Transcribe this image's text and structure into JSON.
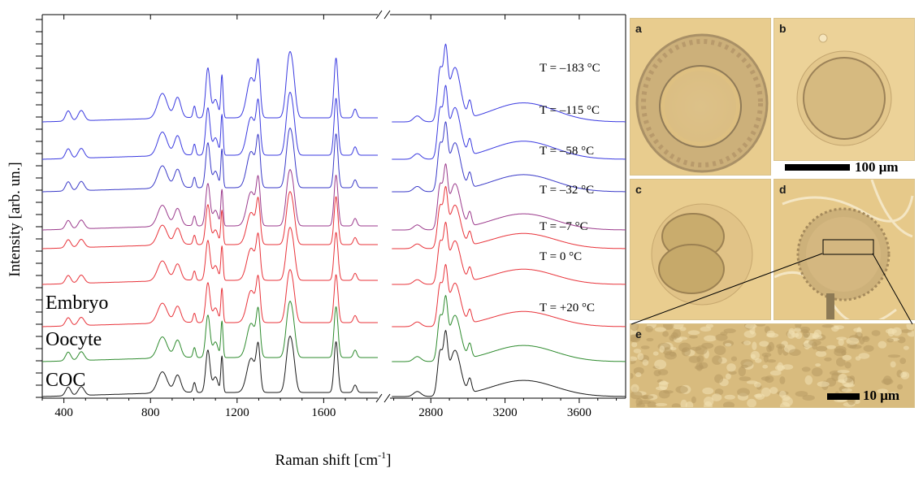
{
  "chart_data": {
    "type": "line",
    "xlabel": "Raman shift [cm",
    "xlabel_sup": "-1",
    "xlabel_close": "]",
    "ylabel": "Intensity [arb. un.]",
    "x_ticks_left": [
      400,
      800,
      1200,
      1600
    ],
    "x_ticks_right": [
      2800,
      3200,
      3600
    ],
    "xlim_left": [
      300,
      1850
    ],
    "xlim_right": [
      2580,
      3850
    ],
    "axis_break": true,
    "y_ticks_shown": false,
    "peaks": [
      {
        "x": 420,
        "h": 0.14,
        "w": 12
      },
      {
        "x": 480,
        "h": 0.14,
        "w": 14
      },
      {
        "x": 855,
        "h": 0.34,
        "w": 22
      },
      {
        "x": 925,
        "h": 0.28,
        "w": 15
      },
      {
        "x": 1003,
        "h": 0.16,
        "w": 6
      },
      {
        "x": 1065,
        "h": 0.68,
        "w": 10
      },
      {
        "x": 1100,
        "h": 0.25,
        "w": 12
      },
      {
        "x": 1130,
        "h": 0.58,
        "w": 5
      },
      {
        "x": 1265,
        "h": 0.55,
        "w": 20
      },
      {
        "x": 1298,
        "h": 0.66,
        "w": 9
      },
      {
        "x": 1440,
        "h": 0.78,
        "w": 14
      },
      {
        "x": 1460,
        "h": 0.38,
        "w": 12
      },
      {
        "x": 1657,
        "h": 0.82,
        "w": 9
      },
      {
        "x": 1745,
        "h": 0.12,
        "w": 8
      },
      {
        "x": 2727,
        "h": 0.08,
        "w": 20
      },
      {
        "x": 2850,
        "h": 0.7,
        "w": 14
      },
      {
        "x": 2880,
        "h": 0.8,
        "w": 11
      },
      {
        "x": 2930,
        "h": 0.72,
        "w": 30
      },
      {
        "x": 3010,
        "h": 0.22,
        "w": 10
      },
      {
        "x": 3300,
        "h": 0.26,
        "w": 170
      }
    ],
    "series": [
      {
        "name": "COC",
        "label_text": "COC",
        "color": "#1a1a1a",
        "scale": 0.85,
        "label_side": "left"
      },
      {
        "name": "Oocyte",
        "label_text": "Oocyte",
        "color": "#2e8b2e",
        "scale": 0.85,
        "label_side": "left"
      },
      {
        "name": "Embryo",
        "label_text": "Embryo",
        "color": "#e8333a",
        "scale": 0.8,
        "label_side": "left"
      },
      {
        "name": "T = 0 °C",
        "label_text": "T = 0 °C",
        "color": "#e8333a",
        "scale": 0.8,
        "label_side": "right"
      },
      {
        "name": "T = –7 °C",
        "label_text": "T = –7 °C",
        "color": "#e8333a",
        "scale": 0.8,
        "label_side": "right"
      },
      {
        "name": "T = –32 °C",
        "label_text": "T = –32 °C",
        "color": "#9b3a8c",
        "scale": 0.85,
        "label_side": "right"
      },
      {
        "name": "T = –58 °C",
        "label_text": "T = –58 °C",
        "color": "#3a3ac8",
        "scale": 0.9,
        "label_side": "right"
      },
      {
        "name": "T = –115 °C",
        "label_text": "T = –115 °C",
        "color": "#3a3ae0",
        "scale": 0.95,
        "label_side": "right"
      },
      {
        "name": "T = –183 °C",
        "label_text": "T = –183 °C",
        "color": "#3a3ae0",
        "scale": 1.0,
        "label_side": "right"
      }
    ],
    "embryo_temp_label": "T = +20 °C"
  },
  "micrographs": {
    "panel_labels": [
      "a",
      "b",
      "c",
      "d",
      "e"
    ],
    "scale_bar_1": "100 μm",
    "scale_bar_2": "10 μm",
    "background": "#e6c98a"
  }
}
